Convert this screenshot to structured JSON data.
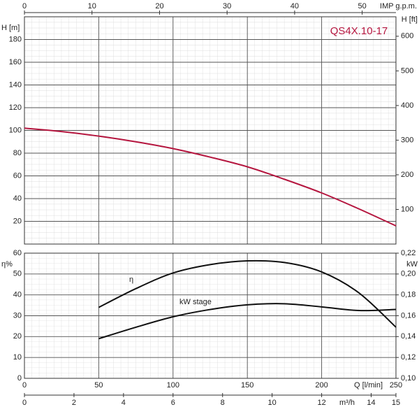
{
  "chart_data": [
    {
      "type": "line",
      "title": "QS4X.10-17",
      "x": [
        0,
        25,
        50,
        75,
        100,
        125,
        150,
        175,
        200,
        225,
        250
      ],
      "xlim": [
        0,
        250
      ],
      "xticks": [
        0,
        50,
        100,
        150,
        200,
        250
      ],
      "top_axis": {
        "label": "IMP g.p.m.",
        "lim": [
          0,
          55
        ],
        "ticks": [
          0,
          10,
          20,
          30,
          40,
          50
        ]
      },
      "y_label": "H [m]",
      "ylim": [
        0,
        200
      ],
      "yticks": [
        20,
        40,
        60,
        80,
        100,
        120,
        140,
        160,
        180
      ],
      "y2_label": "H [ft]",
      "y2lim": [
        0,
        656.2
      ],
      "y2ticks": [
        100,
        200,
        300,
        400,
        500,
        600
      ],
      "grid": true,
      "series": [
        {
          "color": "#b5163f",
          "values": [
            102,
            99,
            95,
            90,
            84,
            76.5,
            68,
            57,
            45,
            31,
            16
          ]
        }
      ]
    },
    {
      "type": "line",
      "x": [
        50,
        75,
        100,
        125,
        150,
        175,
        200,
        225,
        250
      ],
      "xlim": [
        0,
        250
      ],
      "xticks": [
        0,
        50,
        100,
        150,
        200,
        250
      ],
      "x_label": "Q [l/min]",
      "bottom_axis": {
        "label": "m³/h",
        "lim": [
          0,
          15
        ],
        "ticks": [
          0,
          2,
          4,
          6,
          8,
          10,
          12,
          14,
          15
        ]
      },
      "y_label": "η%",
      "ylim": [
        0,
        60
      ],
      "yticks": [
        0,
        10,
        20,
        30,
        40,
        50,
        60
      ],
      "y2_label": "kW",
      "y2lim": [
        0.1,
        0.22
      ],
      "y2ticks": [
        {
          "value": 0.1,
          "label": "0,10"
        },
        {
          "value": 0.12,
          "label": "0,12"
        },
        {
          "value": 0.14,
          "label": "0,14"
        },
        {
          "value": 0.16,
          "label": "0,16"
        },
        {
          "value": 0.18,
          "label": "0,18"
        },
        {
          "value": 0.2,
          "label": "0,20"
        },
        {
          "value": 0.22,
          "label": "0,22"
        }
      ],
      "grid": true,
      "series": [
        {
          "name": "η",
          "color": "#111111",
          "values": [
            34,
            43,
            50.5,
            54.5,
            56.3,
            55.5,
            51,
            41,
            24.5
          ]
        },
        {
          "name": "kW stage",
          "color": "#111111",
          "axis": "y2",
          "values": [
            0.138,
            0.149,
            0.159,
            0.166,
            0.1705,
            0.1715,
            0.1685,
            0.165,
            0.166
          ]
        }
      ]
    }
  ]
}
